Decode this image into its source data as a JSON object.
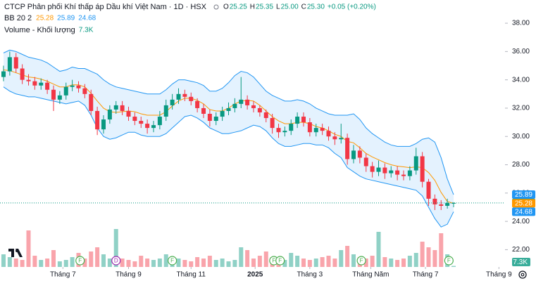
{
  "header": {
    "title": "CTCP Phân phối Khí thấp áp Dầu khí Việt Nam · 1D · HSX",
    "ohlc": [
      {
        "key": "O",
        "value": "25.25"
      },
      {
        "key": "H",
        "value": "25.35"
      },
      {
        "key": "L",
        "value": "25.00"
      },
      {
        "key": "C",
        "value": "25.30"
      }
    ],
    "change": "+0.05 (+0.20%)",
    "bb_label": "BB 20 2",
    "bb_values": [
      {
        "text": "25.28",
        "color": "#ff9800"
      },
      {
        "text": "25.89",
        "color": "#2196f3"
      },
      {
        "text": "24.68",
        "color": "#2196f3"
      }
    ],
    "volume_label": "Volume - Khối lượng",
    "volume_value": "7.3K"
  },
  "chart_data": {
    "type": "candlestick",
    "up_color": "#089981",
    "down_color": "#f23645",
    "grid": false,
    "x": [
      0,
      4,
      8,
      12,
      16,
      20,
      24,
      28,
      32,
      36,
      40,
      44,
      48,
      52,
      56,
      60,
      64,
      68,
      72,
      76,
      80,
      84,
      88,
      92,
      96,
      100,
      104,
      108,
      112,
      116,
      120,
      124,
      128,
      132,
      136,
      140,
      144,
      148,
      152,
      156,
      160,
      164,
      168,
      172,
      176,
      180,
      184,
      188,
      192,
      196,
      200,
      204,
      208,
      212,
      216,
      220,
      224,
      228,
      232,
      236,
      240,
      244,
      248,
      252,
      256,
      260,
      264,
      268,
      272,
      276,
      280,
      284,
      288
    ],
    "open": [
      34.2,
      34.6,
      35.6,
      34.8,
      34.0,
      33.9,
      33.6,
      33.8,
      33.3,
      32.6,
      32.9,
      33.5,
      33.6,
      33.4,
      33.0,
      31.8,
      30.5,
      31.2,
      31.9,
      32.2,
      31.8,
      31.4,
      31.1,
      30.9,
      30.6,
      30.8,
      31.4,
      32.2,
      32.6,
      33.0,
      32.8,
      32.5,
      32.0,
      31.6,
      31.1,
      31.4,
      31.8,
      32.0,
      32.3,
      32.6,
      32.2,
      32.0,
      31.7,
      31.3,
      30.6,
      30.3,
      30.4,
      30.9,
      31.4,
      31.0,
      30.3,
      30.6,
      30.4,
      30.0,
      29.8,
      29.9,
      28.4,
      29.0,
      28.5,
      27.9,
      27.5,
      27.8,
      27.4,
      27.6,
      27.3,
      27.2,
      27.6,
      28.6,
      26.8,
      25.6,
      25.2,
      25.1,
      25.25
    ],
    "high": [
      35.0,
      36.0,
      35.9,
      35.1,
      34.4,
      34.2,
      34.1,
      34.0,
      33.6,
      33.2,
      33.8,
      34.0,
      33.9,
      33.7,
      33.3,
      32.1,
      31.5,
      32.2,
      32.5,
      32.5,
      32.1,
      31.7,
      31.4,
      31.2,
      31.1,
      31.8,
      32.6,
      33.0,
      33.4,
      33.3,
      33.1,
      32.7,
      32.3,
      31.9,
      31.7,
      32.1,
      32.4,
      32.7,
      34.2,
      32.9,
      32.5,
      32.2,
      31.9,
      31.6,
      30.9,
      30.7,
      31.2,
      31.7,
      31.7,
      31.3,
      30.9,
      30.9,
      30.7,
      30.3,
      30.9,
      30.2,
      29.4,
      29.3,
      28.8,
      28.2,
      28.3,
      28.1,
      27.9,
      27.9,
      27.6,
      27.9,
      29.2,
      28.9,
      27.0,
      25.9,
      25.5,
      25.6,
      25.35
    ],
    "low": [
      33.9,
      34.3,
      34.5,
      33.7,
      33.6,
      33.3,
      33.3,
      33.0,
      31.8,
      32.3,
      32.6,
      33.2,
      33.1,
      32.7,
      31.5,
      30.1,
      30.2,
      30.9,
      31.6,
      31.5,
      31.1,
      30.8,
      30.6,
      30.2,
      30.3,
      30.5,
      31.1,
      31.9,
      32.3,
      32.5,
      32.2,
      31.7,
      31.3,
      30.7,
      30.8,
      31.1,
      31.5,
      31.7,
      32.0,
      31.9,
      31.7,
      31.4,
      31.0,
      30.2,
      29.9,
      30.0,
      30.1,
      30.6,
      30.7,
      30.0,
      30.0,
      30.1,
      29.7,
      29.4,
      29.5,
      28.0,
      28.1,
      28.1,
      27.5,
      27.1,
      27.2,
      27.0,
      27.1,
      26.9,
      26.9,
      26.9,
      27.3,
      26.4,
      25.1,
      24.8,
      24.8,
      24.9,
      25.0
    ],
    "close": [
      34.6,
      35.6,
      34.8,
      34.0,
      33.9,
      33.6,
      33.8,
      33.3,
      32.6,
      32.9,
      33.5,
      33.6,
      33.4,
      33.0,
      31.8,
      30.5,
      31.2,
      31.9,
      32.2,
      31.8,
      31.4,
      31.1,
      30.9,
      30.6,
      30.8,
      31.4,
      32.2,
      32.6,
      33.0,
      32.8,
      32.5,
      32.0,
      31.6,
      31.1,
      31.4,
      31.8,
      32.0,
      32.3,
      32.6,
      32.2,
      32.0,
      31.7,
      31.3,
      30.6,
      30.3,
      30.4,
      30.9,
      31.4,
      31.0,
      30.3,
      30.6,
      30.4,
      30.0,
      29.8,
      29.9,
      28.4,
      29.0,
      28.5,
      27.9,
      27.5,
      27.8,
      27.4,
      27.6,
      27.3,
      27.2,
      27.6,
      28.6,
      26.8,
      25.6,
      25.2,
      25.1,
      25.3,
      25.3
    ],
    "volume": [
      90000,
      70000,
      60000,
      50000,
      260000,
      80000,
      50000,
      60000,
      120000,
      40000,
      50000,
      70000,
      100000,
      60000,
      110000,
      140000,
      90000,
      60000,
      270000,
      60000,
      50000,
      40000,
      80000,
      60000,
      50000,
      60000,
      90000,
      70000,
      60000,
      50000,
      40000,
      70000,
      60000,
      80000,
      50000,
      60000,
      40000,
      50000,
      140000,
      120000,
      60000,
      80000,
      110000,
      70000,
      60000,
      50000,
      100000,
      80000,
      60000,
      50000,
      60000,
      70000,
      80000,
      60000,
      120000,
      150000,
      90000,
      70000,
      60000,
      80000,
      250000,
      70000,
      60000,
      50000,
      60000,
      80000,
      100000,
      180000,
      140000,
      120000,
      240000,
      90000,
      7300
    ],
    "bb": {
      "upper_color": "#2196f3",
      "mid_color": "#ff9800",
      "fill": "rgba(33,150,243,0.12)",
      "upper": [
        35.9,
        36.1,
        36.0,
        35.8,
        35.6,
        35.5,
        35.4,
        35.2,
        34.9,
        34.6,
        34.7,
        34.9,
        34.8,
        34.8,
        34.6,
        34.4,
        34.0,
        33.7,
        33.5,
        33.4,
        33.3,
        33.2,
        33.1,
        33.0,
        33.0,
        33.0,
        33.3,
        33.7,
        34.0,
        34.0,
        33.9,
        33.8,
        33.6,
        33.2,
        33.2,
        33.4,
        33.8,
        34.3,
        34.6,
        34.5,
        34.2,
        33.7,
        33.2,
        32.9,
        32.7,
        32.5,
        32.5,
        32.6,
        32.5,
        32.3,
        32.0,
        31.8,
        31.6,
        31.5,
        31.5,
        31.5,
        31.6,
        31.2,
        30.6,
        30.2,
        29.9,
        29.6,
        29.4,
        29.3,
        29.3,
        29.3,
        29.5,
        29.8,
        29.9,
        29.6,
        28.5,
        27.0,
        25.89
      ],
      "mid": [
        34.7,
        34.65,
        34.5,
        34.35,
        34.2,
        34.15,
        34.05,
        33.9,
        33.7,
        33.5,
        33.5,
        33.65,
        33.65,
        33.5,
        33.05,
        32.5,
        32.0,
        31.75,
        31.7,
        31.75,
        31.8,
        31.75,
        31.6,
        31.5,
        31.5,
        31.5,
        31.75,
        32.15,
        32.5,
        32.7,
        32.7,
        32.55,
        32.3,
        31.9,
        31.8,
        31.8,
        32.0,
        32.3,
        32.5,
        32.55,
        32.5,
        32.2,
        31.8,
        31.4,
        31.1,
        30.9,
        30.9,
        31.0,
        31.0,
        30.9,
        30.7,
        30.6,
        30.4,
        30.15,
        30.0,
        29.65,
        29.55,
        29.2,
        28.8,
        28.55,
        28.35,
        28.15,
        28.0,
        27.9,
        27.85,
        27.8,
        27.85,
        27.8,
        27.45,
        26.9,
        26.05,
        25.4,
        25.28
      ],
      "lower": [
        33.5,
        33.2,
        33.0,
        32.9,
        32.8,
        32.8,
        32.7,
        32.6,
        32.5,
        32.4,
        32.3,
        32.4,
        32.5,
        32.2,
        31.5,
        30.6,
        30.0,
        29.8,
        29.9,
        30.1,
        30.3,
        30.3,
        30.1,
        30.0,
        30.0,
        30.0,
        30.2,
        30.6,
        31.0,
        31.4,
        31.5,
        31.3,
        31.0,
        30.6,
        30.4,
        30.2,
        30.2,
        30.3,
        30.4,
        30.6,
        30.8,
        30.7,
        30.4,
        29.9,
        29.5,
        29.3,
        29.3,
        29.4,
        29.5,
        29.5,
        29.4,
        29.4,
        29.2,
        28.8,
        28.5,
        27.8,
        27.5,
        27.2,
        27.0,
        26.9,
        26.8,
        26.7,
        26.6,
        26.5,
        26.4,
        26.3,
        26.2,
        25.8,
        25.0,
        24.2,
        23.6,
        23.8,
        24.68
      ]
    },
    "xlim": [
      -2.25,
      320
    ],
    "ylim": [
      20.78,
      39.64
    ],
    "vlim": [
      0,
      350000
    ],
    "yticks": [
      {
        "value": 38,
        "label": "38.00"
      },
      {
        "value": 36,
        "label": "36.00"
      },
      {
        "value": 34,
        "label": "34.00"
      },
      {
        "value": 32,
        "label": "32.00"
      },
      {
        "value": 30,
        "label": "30.00"
      },
      {
        "value": 28,
        "label": "28.00"
      },
      {
        "value": 26,
        "label": "26.00"
      },
      {
        "value": 24,
        "label": "24.00"
      },
      {
        "value": 22,
        "label": "22.00"
      }
    ],
    "xticks": [
      {
        "value": 38,
        "label": "Tháng 7"
      },
      {
        "value": 80,
        "label": "Tháng 9"
      },
      {
        "value": 120,
        "label": "Tháng 11"
      },
      {
        "value": 161,
        "label": "2025",
        "bold": true
      },
      {
        "value": 196,
        "label": "Tháng 3"
      },
      {
        "value": 235,
        "label": "Tháng Năm"
      },
      {
        "value": 270,
        "label": "Tháng 7"
      },
      {
        "value": 317,
        "label": "Tháng 9"
      }
    ],
    "price_tags": [
      {
        "value": 25.89,
        "label": "25.89",
        "color": "#2196f3"
      },
      {
        "value": 25.3,
        "label": "25.30",
        "color": "#089981"
      },
      {
        "value": 25.28,
        "label": "25.28",
        "color": "#ff9800"
      },
      {
        "value": 24.68,
        "label": "24.68",
        "color": "#2196f3"
      }
    ],
    "volume_tag": {
      "value": 7300,
      "label": "7.3K"
    },
    "events": [
      {
        "x": 49,
        "label": "F",
        "color": "#4caf50"
      },
      {
        "x": 72,
        "label": "D",
        "color": "#9c27b0"
      },
      {
        "x": 108,
        "label": "F",
        "color": "#4caf50"
      },
      {
        "x": 173,
        "label": "F",
        "color": "#4caf50"
      },
      {
        "x": 177,
        "label": "F",
        "color": "#4caf50"
      },
      {
        "x": 229,
        "label": "F",
        "color": "#4caf50"
      },
      {
        "x": 285,
        "label": "F",
        "color": "#4caf50"
      }
    ]
  }
}
